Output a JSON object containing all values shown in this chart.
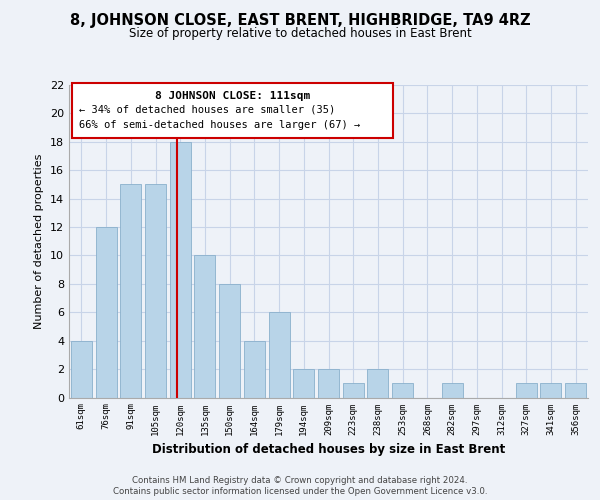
{
  "title": "8, JOHNSON CLOSE, EAST BRENT, HIGHBRIDGE, TA9 4RZ",
  "subtitle": "Size of property relative to detached houses in East Brent",
  "xlabel": "Distribution of detached houses by size in East Brent",
  "ylabel": "Number of detached properties",
  "categories": [
    "61sqm",
    "76sqm",
    "91sqm",
    "105sqm",
    "120sqm",
    "135sqm",
    "150sqm",
    "164sqm",
    "179sqm",
    "194sqm",
    "209sqm",
    "223sqm",
    "238sqm",
    "253sqm",
    "268sqm",
    "282sqm",
    "297sqm",
    "312sqm",
    "327sqm",
    "341sqm",
    "356sqm"
  ],
  "values": [
    4,
    12,
    15,
    15,
    18,
    10,
    8,
    4,
    6,
    2,
    2,
    1,
    2,
    1,
    0,
    1,
    0,
    0,
    1,
    1,
    1
  ],
  "bar_color": "#b8d4e8",
  "bar_edge_color": "#8ab0cc",
  "vline_x": 3.85,
  "vline_color": "#cc0000",
  "annotation_title": "8 JOHNSON CLOSE: 111sqm",
  "annotation_line1": "← 34% of detached houses are smaller (35)",
  "annotation_line2": "66% of semi-detached houses are larger (67) →",
  "annotation_box_color": "#ffffff",
  "annotation_box_edge": "#cc0000",
  "ylim": [
    0,
    22
  ],
  "yticks": [
    0,
    2,
    4,
    6,
    8,
    10,
    12,
    14,
    16,
    18,
    20,
    22
  ],
  "footer_line1": "Contains HM Land Registry data © Crown copyright and database right 2024.",
  "footer_line2": "Contains public sector information licensed under the Open Government Licence v3.0.",
  "bg_color": "#eef2f8",
  "grid_color": "#c8d4e8"
}
